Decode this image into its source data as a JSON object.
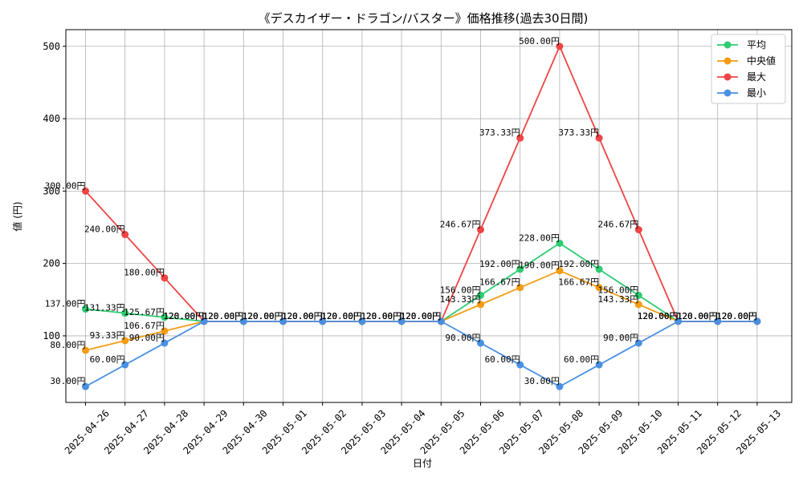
{
  "chart_data": {
    "type": "line",
    "title": "《デスカイザー・ドラゴン/バスター》価格推移(過去30日間)",
    "xlabel": "日付",
    "ylabel": "値 (円)",
    "categories": [
      "2025-04-26",
      "2025-04-27",
      "2025-04-28",
      "2025-04-29",
      "2025-04-30",
      "2025-05-01",
      "2025-05-02",
      "2025-05-03",
      "2025-05-04",
      "2025-05-05",
      "2025-05-06",
      "2025-05-07",
      "2025-05-08",
      "2025-05-09",
      "2025-05-10",
      "2025-05-11",
      "2025-05-12",
      "2025-05-13"
    ],
    "yticks": [
      100,
      200,
      300,
      400,
      500
    ],
    "ylim": [
      8,
      523
    ],
    "grid": true,
    "legend_position": "top-right",
    "label_suffix": "円",
    "series": [
      {
        "name": "平均",
        "color": "#2ecc71",
        "values": [
          137.0,
          131.33,
          125.67,
          120.0,
          120.0,
          120.0,
          120.0,
          120.0,
          120.0,
          120.0,
          156.0,
          192.0,
          228.0,
          192.0,
          156.0,
          120.0,
          120.0,
          120.0
        ]
      },
      {
        "name": "中央値",
        "color": "#f39c12",
        "values": [
          80.0,
          93.33,
          106.67,
          120.0,
          120.0,
          120.0,
          120.0,
          120.0,
          120.0,
          120.0,
          143.33,
          166.67,
          190.0,
          166.67,
          143.33,
          120.0,
          120.0,
          120.0
        ]
      },
      {
        "name": "最大",
        "color": "#ef4444",
        "values": [
          300.0,
          240.0,
          180.0,
          120.0,
          120.0,
          120.0,
          120.0,
          120.0,
          120.0,
          120.0,
          246.67,
          373.33,
          500.0,
          373.33,
          246.67,
          120.0,
          120.0,
          120.0
        ]
      },
      {
        "name": "最小",
        "color": "#4a90e2",
        "values": [
          30.0,
          60.0,
          90.0,
          120.0,
          120.0,
          120.0,
          120.0,
          120.0,
          120.0,
          120.0,
          90.0,
          60.0,
          30.0,
          60.0,
          90.0,
          120.0,
          120.0,
          120.0
        ]
      }
    ]
  }
}
